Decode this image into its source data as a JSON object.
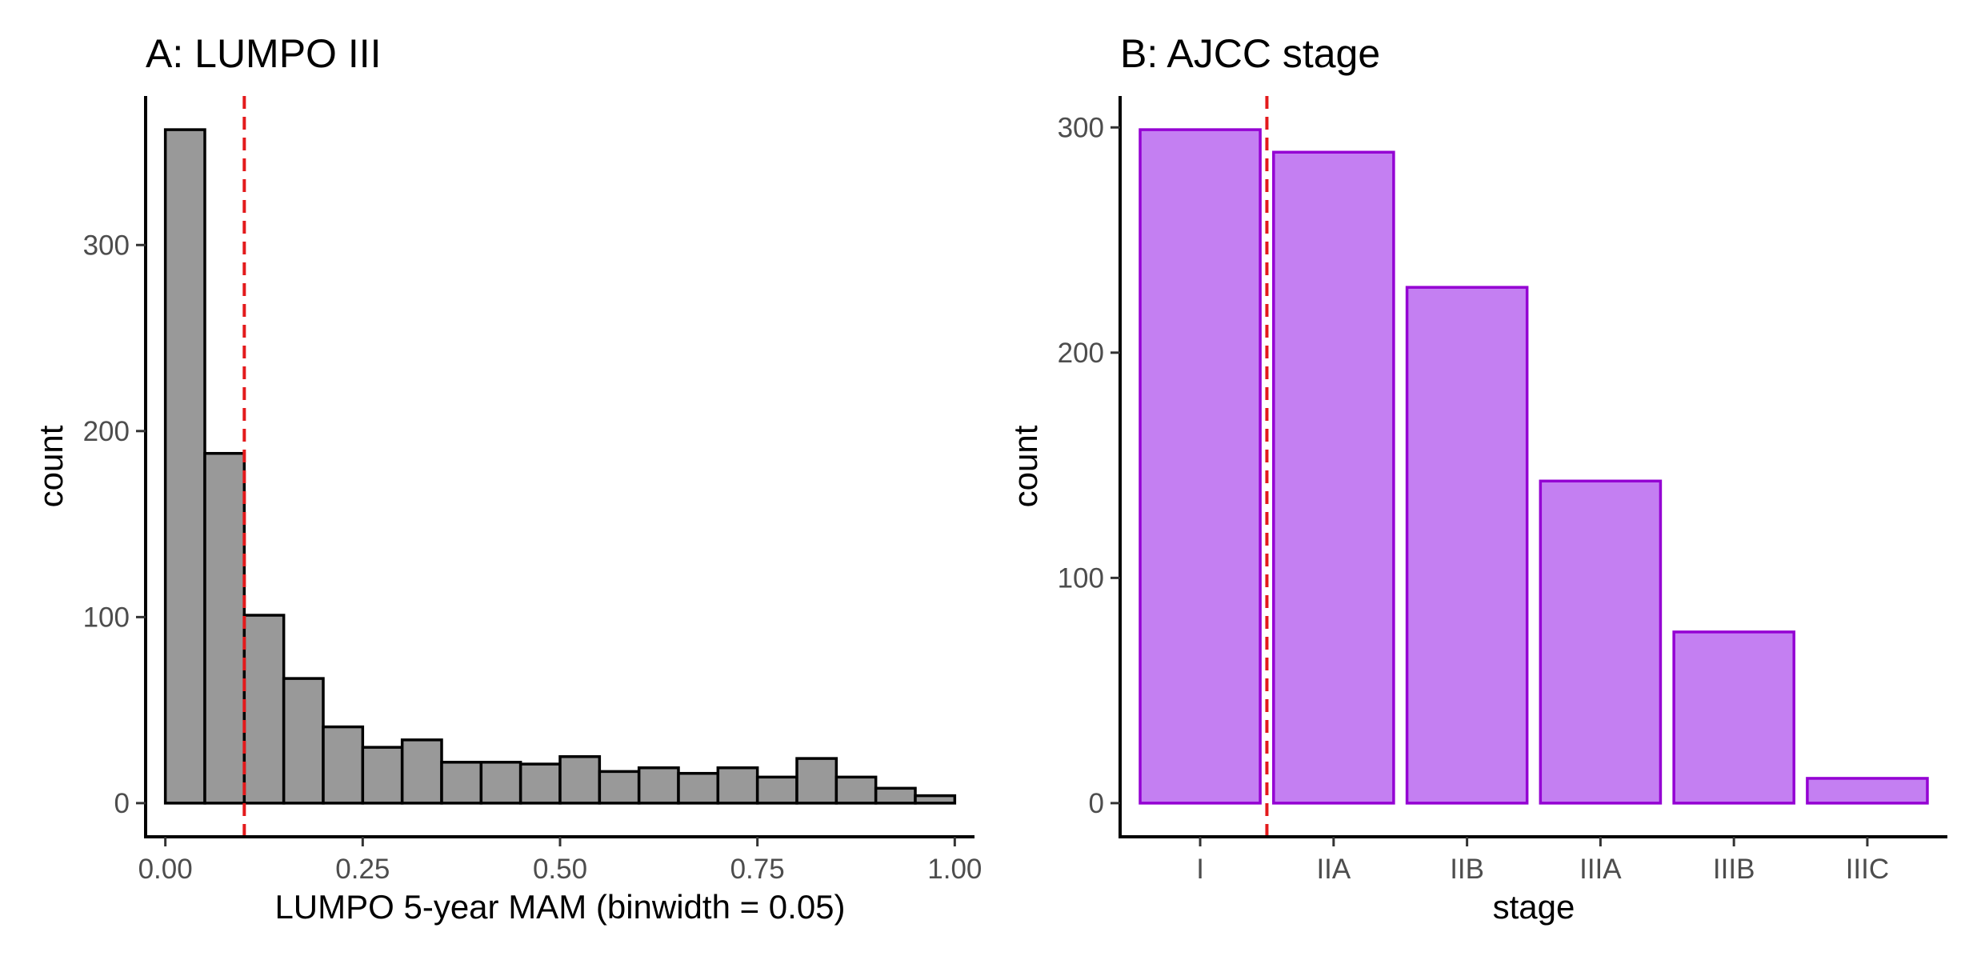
{
  "chart_data": [
    {
      "type": "bar",
      "subtype": "histogram",
      "title": "A: LUMPO III",
      "xlabel": "LUMPO 5-year MAM (binwidth = 0.05)",
      "ylabel": "count",
      "binwidth": 0.05,
      "bin_starts": [
        0.0,
        0.05,
        0.1,
        0.15,
        0.2,
        0.25,
        0.3,
        0.35,
        0.4,
        0.45,
        0.5,
        0.55,
        0.6,
        0.65,
        0.7,
        0.75,
        0.8,
        0.85,
        0.9,
        0.95
      ],
      "values": [
        362,
        188,
        101,
        67,
        41,
        30,
        34,
        22,
        22,
        21,
        25,
        17,
        19,
        16,
        19,
        14,
        24,
        14,
        8,
        4
      ],
      "xlim": [
        -0.025,
        1.025
      ],
      "ylim": [
        -18.1,
        380.1
      ],
      "xticks": [
        0.0,
        0.25,
        0.5,
        0.75,
        1.0
      ],
      "xtick_labels": [
        "0.00",
        "0.25",
        "0.50",
        "0.75",
        "1.00"
      ],
      "yticks": [
        0,
        100,
        200,
        300
      ],
      "ytick_labels": [
        "0",
        "100",
        "200",
        "300"
      ],
      "vline": 0.1,
      "vline_color": "#e31a1c",
      "fill_color": "#999999",
      "edge_color": "#000000",
      "grid": false,
      "legend": "none"
    },
    {
      "type": "bar",
      "title": "B: AJCC stage",
      "xlabel": "stage",
      "ylabel": "count",
      "categories": [
        "I",
        "IIA",
        "IIB",
        "IIIA",
        "IIIB",
        "IIIC"
      ],
      "values": [
        299,
        289,
        229,
        143,
        76,
        11
      ],
      "ylim": [
        -14.95,
        313.95
      ],
      "yticks": [
        0,
        100,
        200,
        300
      ],
      "ytick_labels": [
        "0",
        "100",
        "200",
        "300"
      ],
      "vline": 1.5,
      "vline_color": "#e31a1c",
      "fill_color": "#c47ff2",
      "edge_color": "#9400d3",
      "grid": false,
      "legend": "none"
    }
  ]
}
